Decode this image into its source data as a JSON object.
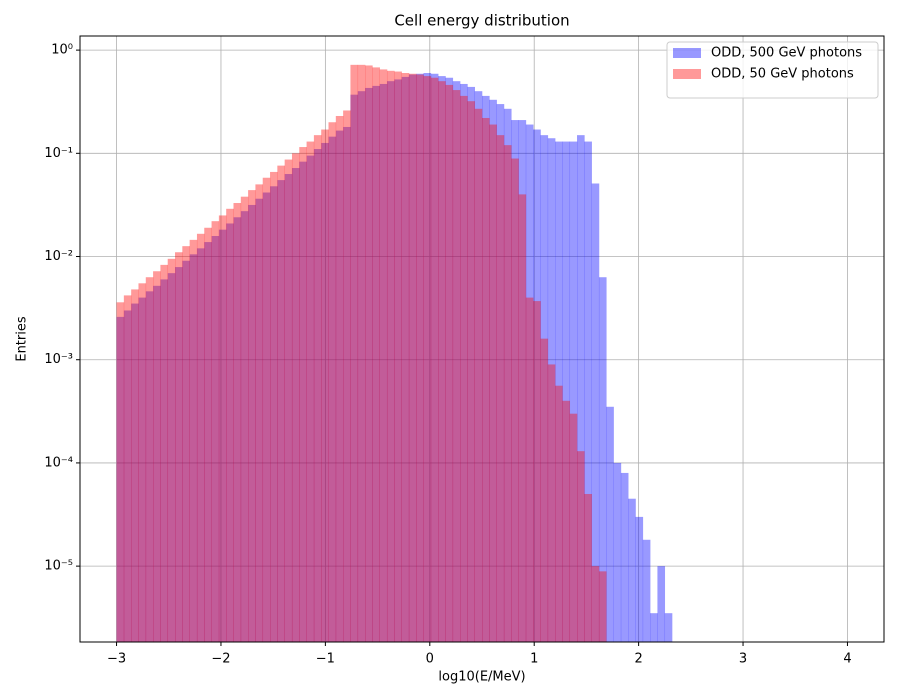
{
  "chart_data": {
    "type": "histogram",
    "title": "Cell energy distribution",
    "xlabel": "log10(E/MeV)",
    "ylabel": "Entries",
    "bins": [
      -3,
      -2.93,
      -2.86,
      -2.79,
      -2.72,
      -2.65,
      -2.58,
      -2.51,
      -2.44,
      -2.37,
      -2.3,
      -2.23,
      -2.16,
      -2.09,
      -2.02,
      -1.95,
      -1.88,
      -1.81,
      -1.74,
      -1.67,
      -1.6,
      -1.53,
      -1.46,
      -1.39,
      -1.32,
      -1.25,
      -1.18,
      -1.11,
      -1.04,
      -0.97,
      -0.9,
      -0.83,
      -0.76,
      -0.69,
      -0.62,
      -0.55,
      -0.48,
      -0.41,
      -0.34,
      -0.27,
      -0.2,
      -0.13,
      -0.06,
      0.01,
      0.08,
      0.15,
      0.22,
      0.29,
      0.36,
      0.43,
      0.5,
      0.57,
      0.64,
      0.71,
      0.78,
      0.85,
      0.92,
      0.99,
      1.06,
      1.13,
      1.2,
      1.27,
      1.34,
      1.41,
      1.48,
      1.55,
      1.62,
      1.69,
      1.76,
      1.83,
      1.9,
      1.97,
      2.04,
      2.11,
      2.18,
      2.25,
      2.32
    ],
    "series": [
      {
        "name": "ODD, 500 GeV photons",
        "color": "#0000ff",
        "alpha": 0.4,
        "values": [
          0.0026,
          0.003,
          0.0035,
          0.004,
          0.0046,
          0.0052,
          0.006,
          0.0069,
          0.0079,
          0.0091,
          0.0105,
          0.012,
          0.0138,
          0.0158,
          0.0182,
          0.0209,
          0.024,
          0.0275,
          0.0316,
          0.0363,
          0.0417,
          0.0479,
          0.055,
          0.063,
          0.072,
          0.083,
          0.095,
          0.11,
          0.126,
          0.145,
          0.166,
          0.18,
          0.37,
          0.4,
          0.43,
          0.45,
          0.47,
          0.5,
          0.52,
          0.55,
          0.58,
          0.59,
          0.6,
          0.59,
          0.56,
          0.54,
          0.5,
          0.47,
          0.44,
          0.4,
          0.36,
          0.33,
          0.3,
          0.27,
          0.21,
          0.21,
          0.19,
          0.17,
          0.15,
          0.14,
          0.13,
          0.13,
          0.13,
          0.15,
          0.13,
          0.051,
          0.0063,
          0.00035,
          0.0001,
          8e-05,
          4.5e-05,
          3e-05,
          1.8e-05,
          3.5e-06,
          1e-05,
          3.5e-06
        ]
      },
      {
        "name": "ODD, 50 GeV photons",
        "color": "#ff0000",
        "alpha": 0.4,
        "values": [
          0.0036,
          0.0042,
          0.0048,
          0.0055,
          0.0063,
          0.0072,
          0.0083,
          0.0095,
          0.011,
          0.0126,
          0.0145,
          0.0166,
          0.019,
          0.022,
          0.025,
          0.029,
          0.033,
          0.038,
          0.044,
          0.05,
          0.058,
          0.066,
          0.076,
          0.087,
          0.1,
          0.115,
          0.13,
          0.15,
          0.17,
          0.2,
          0.23,
          0.26,
          0.72,
          0.72,
          0.71,
          0.68,
          0.65,
          0.63,
          0.62,
          0.6,
          0.59,
          0.58,
          0.56,
          0.54,
          0.5,
          0.46,
          0.41,
          0.36,
          0.32,
          0.27,
          0.22,
          0.19,
          0.15,
          0.12,
          0.089,
          0.04,
          0.004,
          0.0037,
          0.0016,
          0.0009,
          0.00056,
          0.0004,
          0.0003,
          0.00013,
          5e-05,
          1e-05,
          8.9e-06,
          0,
          0,
          0,
          0,
          0,
          0,
          0,
          0,
          0
        ]
      }
    ],
    "xlim": [
      -3.35,
      4.35
    ],
    "ylim": [
      1.84e-06,
      1.37
    ],
    "yscale": "log",
    "xticks": [
      {
        "value": -3,
        "label": "−3"
      },
      {
        "value": -2,
        "label": "−2"
      },
      {
        "value": -1,
        "label": "−1"
      },
      0,
      1,
      2,
      3,
      4
    ],
    "yticks": [
      {
        "value": 1e-05,
        "label": "10⁻⁵"
      },
      {
        "value": 0.0001,
        "label": "10⁻⁴"
      },
      {
        "value": 0.001,
        "label": "10⁻³"
      },
      {
        "value": 0.01,
        "label": "10⁻²"
      },
      {
        "value": 0.1,
        "label": "10⁻¹"
      },
      {
        "value": 1,
        "label": "10⁰"
      }
    ],
    "grid": true,
    "legend": "upper right"
  }
}
